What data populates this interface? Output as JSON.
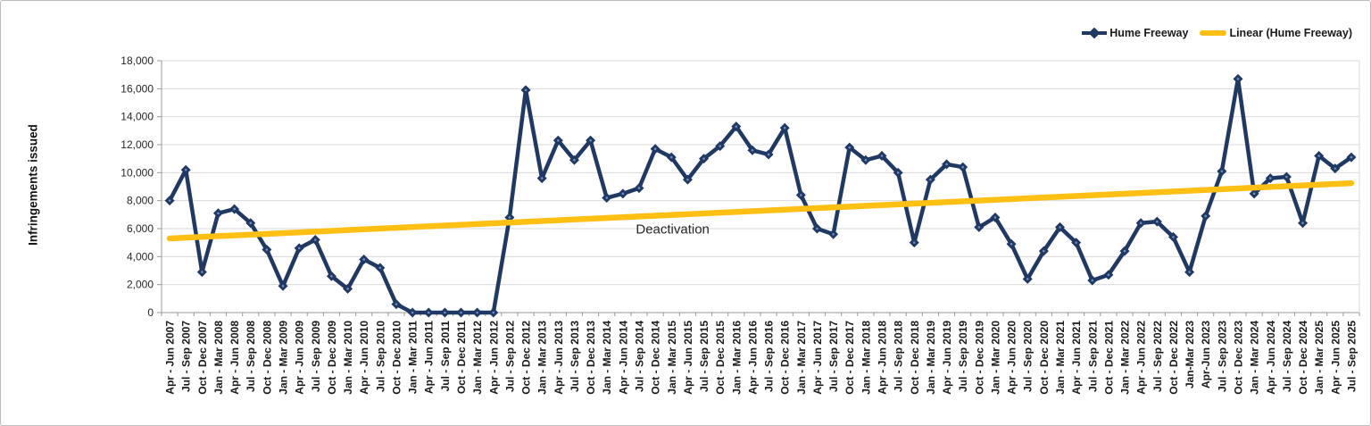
{
  "chart_data": {
    "type": "line",
    "title": "",
    "xlabel": "",
    "ylabel": "Infringements issued",
    "ylim": [
      0,
      18000
    ],
    "ytick_step": 2000,
    "ytick_labels": [
      "0",
      "2,000",
      "4,000",
      "6,000",
      "8,000",
      "10,000",
      "12,000",
      "14,000",
      "16,000",
      "18,000"
    ],
    "grid": "horizontal",
    "legend_position": "top-right",
    "categories": [
      "Apr - Jun 2007",
      "Jul - Sep 2007",
      "Oct - Dec 2007",
      "Jan - Mar 2008",
      "Apr - Jun 2008",
      "Jul - Sep 2008",
      "Oct - Dec 2008",
      "Jan - Mar 2009",
      "Apr - Jun 2009",
      "Jul - Sep 2009",
      "Oct - Dec 2009",
      "Jan - Mar 2010",
      "Apr - Jun 2010",
      "Jul - Sep 2010",
      "Oct - Dec 2010",
      "Jan - Mar 2011",
      "Apr - Jun 2011",
      "Jul - Sep 2011",
      "Oct - Dec 2011",
      "Jan - Mar 2012",
      "Apr - Jun 2012",
      "Jul - Sep 2012",
      "Oct - Dec 2012",
      "Jan - Mar 2013",
      "Apr - Jun 2013",
      "Jul - Sep 2013",
      "Oct - Dec 2013",
      "Jan - Mar 2014",
      "Apr - Jun 2014",
      "Jul - Sep 2014",
      "Oct - Dec 2014",
      "Jan - Mar 2015",
      "Apr - Jun 2015",
      "Jul - Sep 2015",
      "Oct - Dec 2015",
      "Jan - Mar 2016",
      "Apr - Jun 2016",
      "Jul - Sep 2016",
      "Oct - Dec 2016",
      "Jan - Mar 2017",
      "Apr - Jun 2017",
      "Jul - Sep 2017",
      "Oct - Dec 2017",
      "Jan - Mar 2018",
      "Apr - Jun 2018",
      "Jul - Sep 2018",
      "Oct - Dec 2018",
      "Jan - Mar 2019",
      "Apr - Jun 2019",
      "Jul - Sep 2019",
      "Oct - Dec 2019",
      "Jan - Mar 2020",
      "Apr - Jun 2020",
      "Jul - Sep 2020",
      "Oct - Dec 2020",
      "Jan - Mar 2021",
      "Apr - Jun 2021",
      "Jul - Sep 2021",
      "Oct - Dec 2021",
      "Jan - Mar 2022",
      "Apr - Jun 2022",
      "Jul - Sep 2022",
      "Oct - Dec 2022",
      "Jan-Mar 2023",
      "Apr-Jun 2023",
      "Jul - Sep 2023",
      "Oct - Dec 2023",
      "Jan - Mar 2024",
      "Apr - Jun 2024",
      "Jul - Sep 2024",
      "Oct - Dec 2024",
      "Jan - Mar 2025",
      "Apr - Jun 2025",
      "Jul - Sep 2025"
    ],
    "series": [
      {
        "name": "Hume Freeway",
        "color": "#1f3864",
        "marker": "diamond",
        "values": [
          8000,
          10200,
          2900,
          7100,
          7400,
          6400,
          4500,
          1900,
          4600,
          5200,
          2600,
          1700,
          3800,
          3200,
          600,
          0,
          0,
          0,
          0,
          0,
          0,
          6800,
          15900,
          9600,
          12300,
          10900,
          12300,
          8200,
          8500,
          8900,
          11700,
          11100,
          9500,
          11000,
          11900,
          13300,
          11600,
          11300,
          13200,
          8400,
          6000,
          5600,
          11800,
          10900,
          11200,
          10000,
          5000,
          9500,
          10600,
          10400,
          6100,
          6800,
          4900,
          2400,
          4400,
          6100,
          5000,
          2300,
          2700,
          4400,
          6400,
          6500,
          5400,
          2900,
          6900,
          10100,
          16700,
          8500,
          9600,
          9700,
          6400,
          11200,
          10300,
          11100
        ]
      }
    ],
    "trend": {
      "name": "Linear (Hume Freeway)",
      "color": "#ffc013",
      "start_value": 5300,
      "end_value": 9250
    },
    "legend": {
      "series_label": "Hume Freeway",
      "trend_label": "Linear (Hume Freeway)"
    },
    "annotations": [
      {
        "text": "Deactivation",
        "x_index": 28.8,
        "y_value": 5950
      }
    ]
  }
}
